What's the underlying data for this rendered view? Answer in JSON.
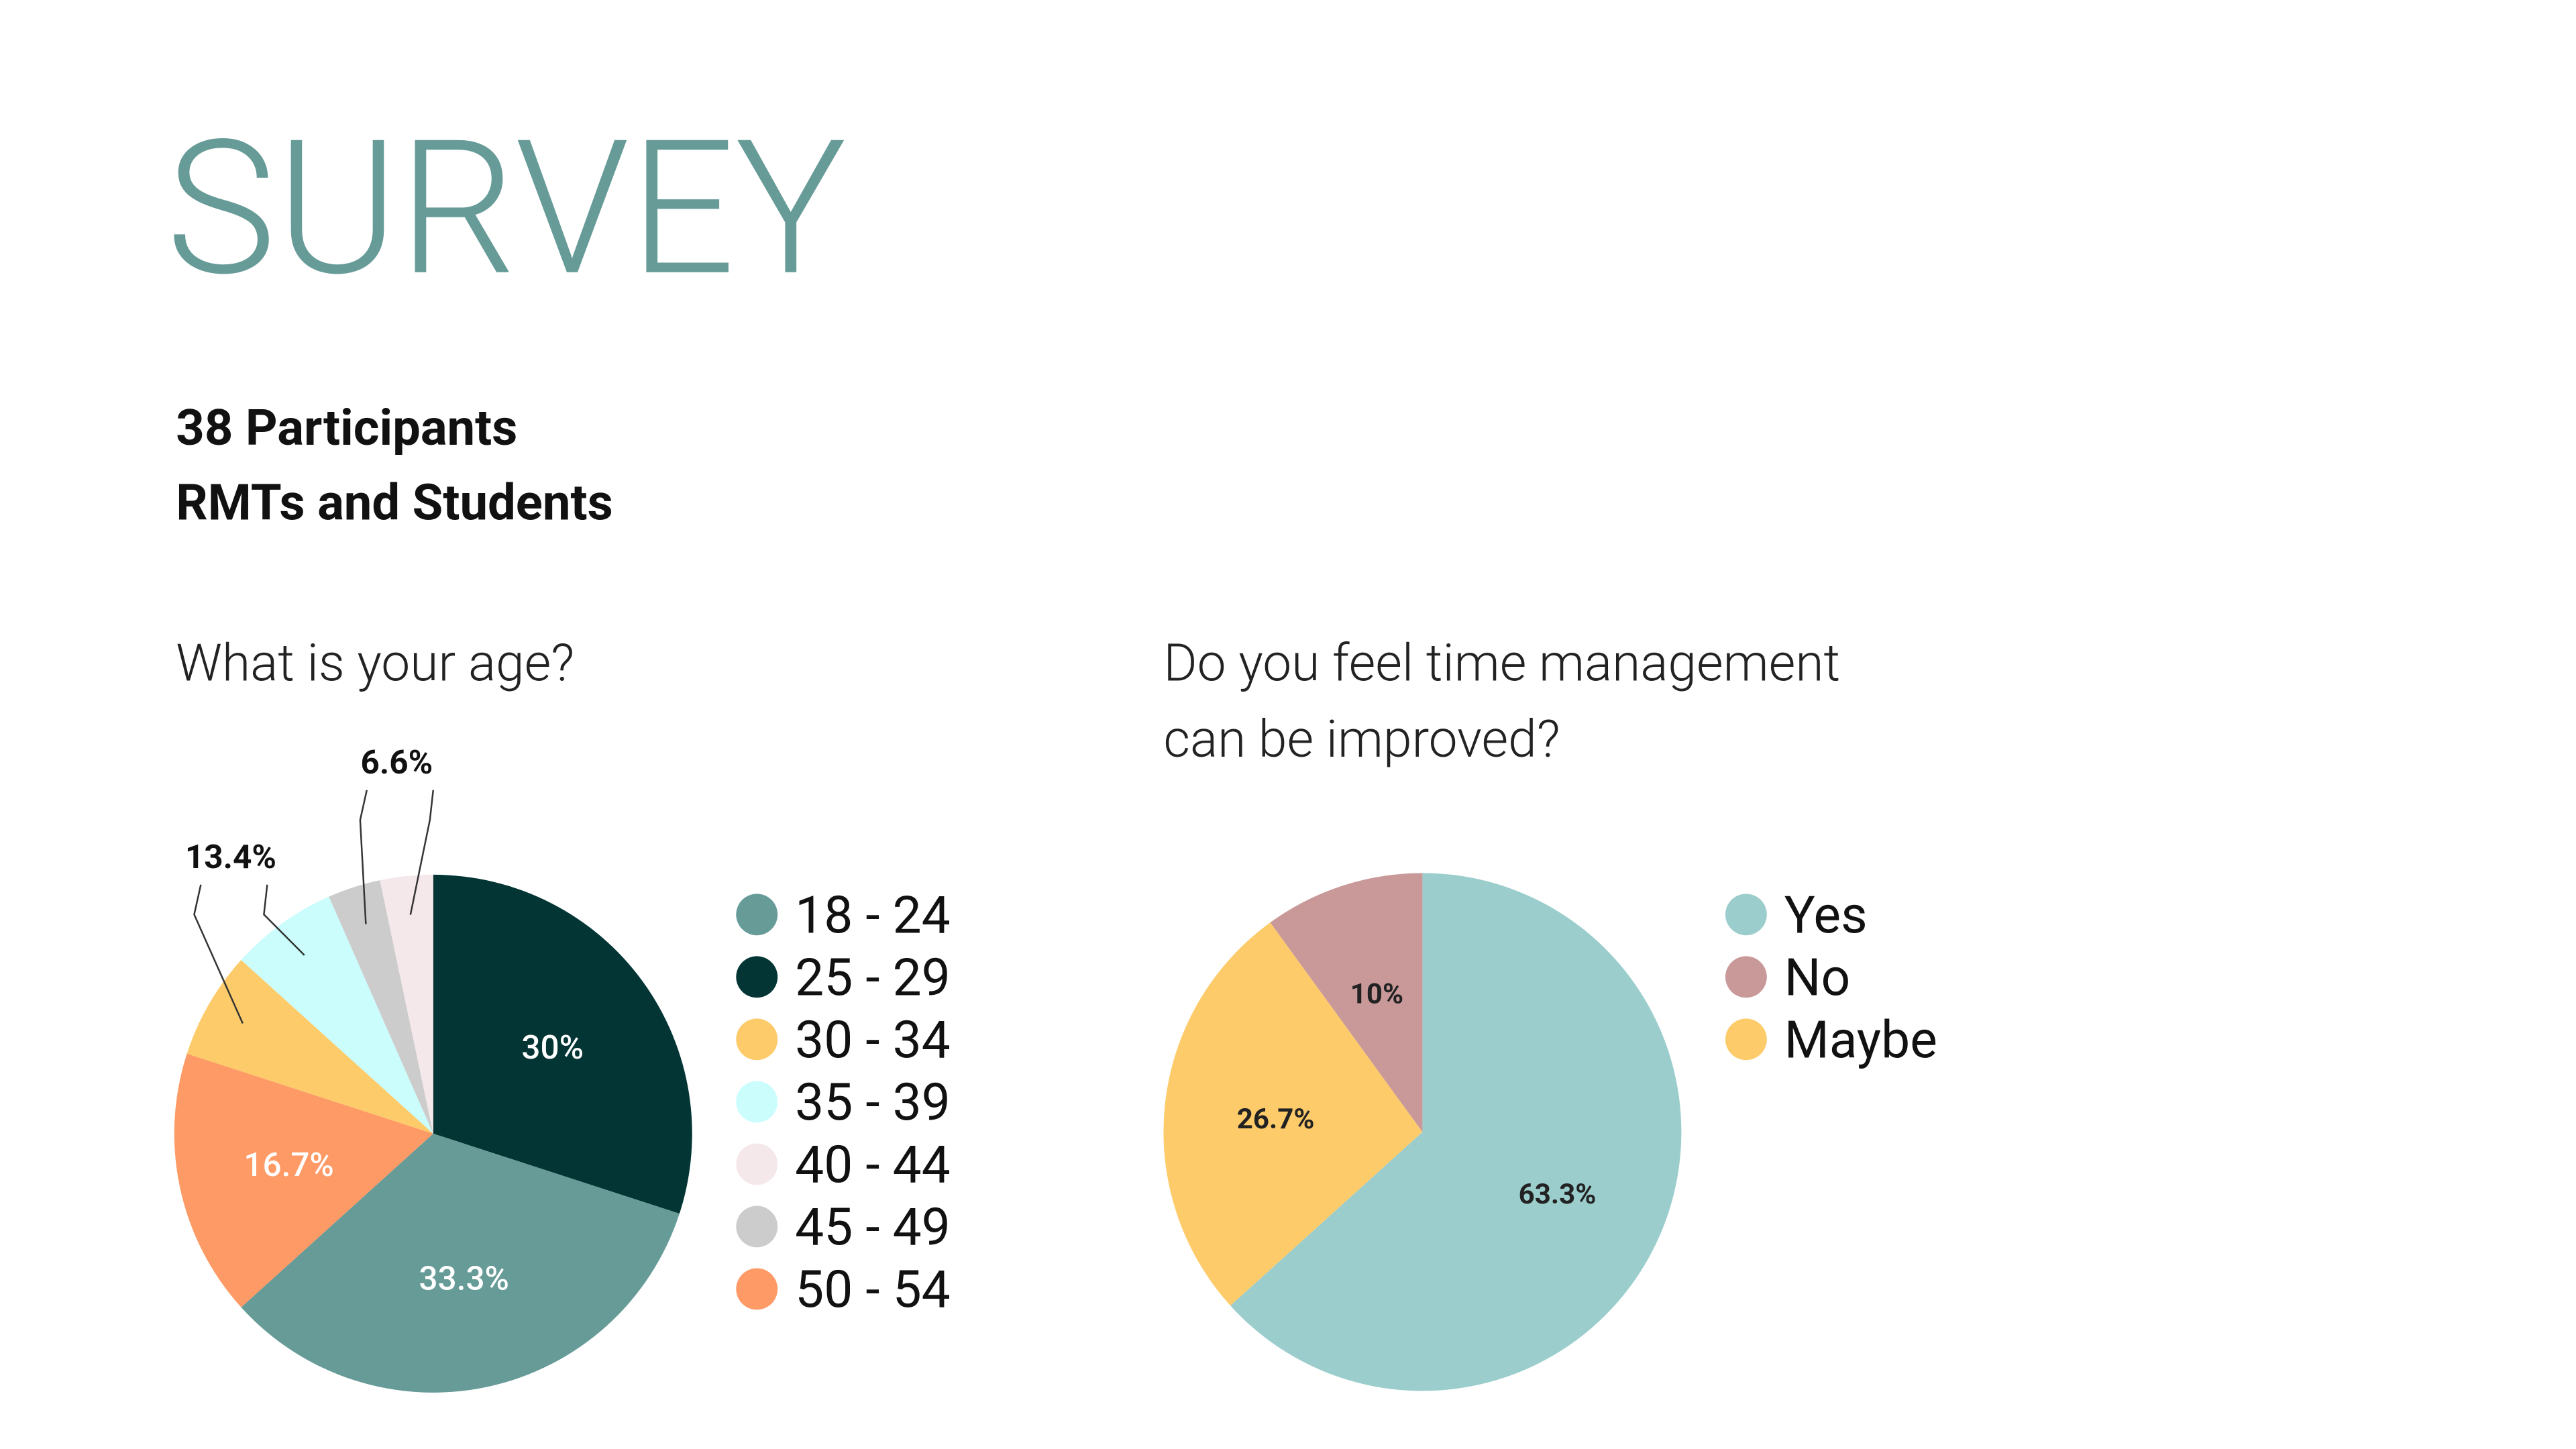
{
  "page": {
    "title": "SURVEY",
    "lines": [
      "38 Participants",
      "RMTs and Students"
    ]
  },
  "chart_data": [
    {
      "type": "pie",
      "title": [
        "What is your age?"
      ],
      "categories": [
        "18 - 24",
        "25 - 29",
        "30 - 34",
        "35 - 39",
        "40 - 44",
        "45 - 49",
        "50 - 54"
      ],
      "values": [
        33.3,
        30,
        6.7,
        6.7,
        3.3,
        3.3,
        16.7
      ],
      "value_labels": [
        "33.3%",
        "30%",
        null,
        null,
        null,
        null,
        "16.7%"
      ],
      "colors": [
        "#669b98",
        "#033535",
        "#fdcb6a",
        "#cbfdfd",
        "#f5e8eb",
        "#cccccc",
        "#fe9a66"
      ],
      "annotations": [
        {
          "label": "13.4%"
        },
        {
          "label": "6.6%"
        }
      ]
    },
    {
      "type": "pie",
      "title": [
        "Do you feel time management",
        "can be improved?"
      ],
      "categories": [
        "Yes",
        "No",
        "Maybe"
      ],
      "values": [
        63.3,
        10,
        26.7
      ],
      "value_labels": [
        "63.3%",
        "10%",
        "26.7%"
      ],
      "colors": [
        "#9ccdcd",
        "#c99999",
        "#fdcb6a"
      ]
    }
  ]
}
